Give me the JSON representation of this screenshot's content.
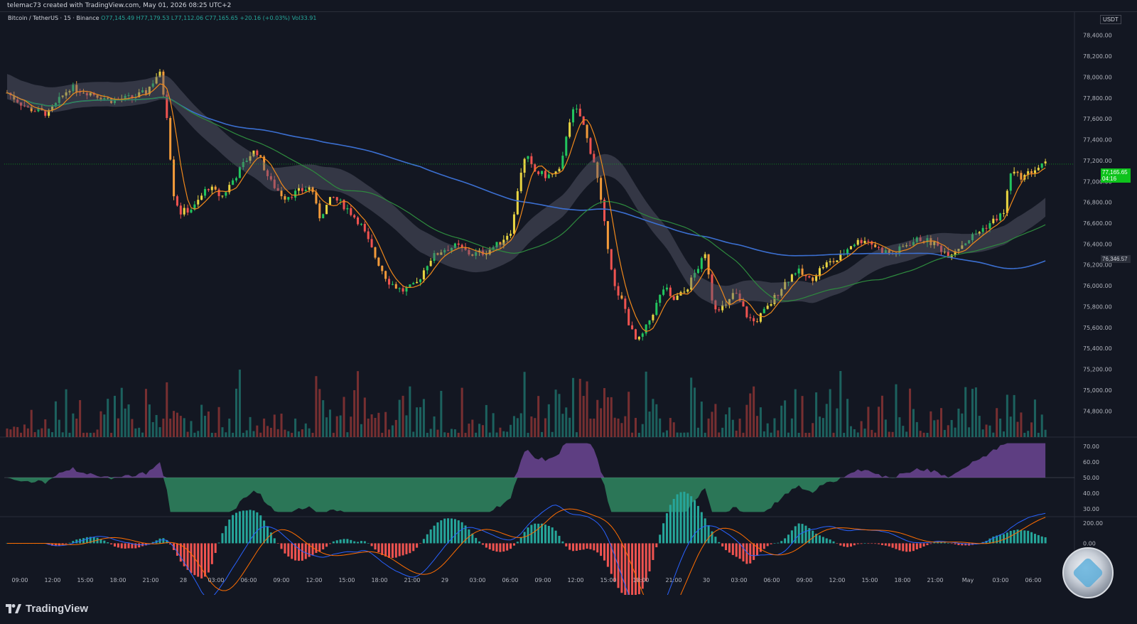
{
  "header": {
    "credit": "telemac73 created with TradingView.com, May 01, 2026 08:25 UTC+2"
  },
  "legend": {
    "symbol": "Bitcoin / TetherUS · 15 · Binance",
    "open": "O77,145.49",
    "high": "H77,179.53",
    "low": "L77,112.06",
    "close": "C77,165.65",
    "change": "+20.16 (+0.03%)",
    "volume": "Vol33.91"
  },
  "currency_badge": "USDT",
  "last_price": {
    "price": "77,165.65",
    "countdown": "04:16"
  },
  "ref_price": "76,346.57",
  "footer": {
    "brand": "TradingView"
  },
  "colors": {
    "background": "#131722",
    "up": "#22c55e",
    "down": "#ef5350",
    "ema_fast": "#f0881b",
    "ma_slow": "#3b6fd1",
    "ma_mid": "#2e8b3e",
    "cloud": "#5d6070",
    "cloud_bull": "#1e5d73",
    "rsi_up": "#9c5fd1",
    "rsi_down": "#3fc583"
  },
  "chart_data": [
    {
      "type": "candlestick",
      "title": "",
      "y_axis": {
        "labels": [
          "78,400.00",
          "78,200.00",
          "78,000.00",
          "77,800.00",
          "77,600.00",
          "77,400.00",
          "77,200.00",
          "77,000.00",
          "76,800.00",
          "76,600.00",
          "76,400.00",
          "76,200.00",
          "76,000.00",
          "75,800.00",
          "75,600.00",
          "75,400.00",
          "75,200.00",
          "75,000.00",
          "74,800.00"
        ],
        "ylim": [
          74700,
          78500
        ]
      },
      "x_axis": {
        "labels": [
          "09:00",
          "12:00",
          "15:00",
          "18:00",
          "21:00",
          "28",
          "03:00",
          "06:00",
          "09:00",
          "12:00",
          "15:00",
          "18:00",
          "21:00",
          "29",
          "03:00",
          "06:00",
          "09:00",
          "12:00",
          "15:00",
          "18:00",
          "21:00",
          "30",
          "03:00",
          "06:00",
          "09:00",
          "12:00",
          "15:00",
          "18:00",
          "21:00",
          "May",
          "03:00",
          "06:00"
        ]
      },
      "price_path": [
        [
          0,
          77850
        ],
        [
          3,
          77700
        ],
        [
          6,
          77650
        ],
        [
          9,
          77900
        ],
        [
          12,
          77850
        ],
        [
          15,
          77780
        ],
        [
          18,
          77800
        ],
        [
          20,
          77850
        ],
        [
          22,
          78050
        ],
        [
          23,
          77700
        ],
        [
          24,
          76900
        ],
        [
          25,
          76700
        ],
        [
          27,
          76750
        ],
        [
          29,
          76950
        ],
        [
          31,
          76850
        ],
        [
          33,
          77050
        ],
        [
          35,
          77250
        ],
        [
          36,
          77300
        ],
        [
          37,
          77150
        ],
        [
          38,
          77000
        ],
        [
          40,
          76850
        ],
        [
          42,
          76900
        ],
        [
          44,
          76950
        ],
        [
          45,
          76650
        ],
        [
          47,
          76850
        ],
        [
          49,
          76750
        ],
        [
          51,
          76600
        ],
        [
          53,
          76300
        ],
        [
          55,
          76050
        ],
        [
          57,
          75950
        ],
        [
          59,
          76000
        ],
        [
          61,
          76250
        ],
        [
          63,
          76350
        ],
        [
          65,
          76380
        ],
        [
          67,
          76300
        ],
        [
          69,
          76320
        ],
        [
          71,
          76400
        ],
        [
          73,
          76550
        ],
        [
          74,
          77050
        ],
        [
          75,
          77250
        ],
        [
          76,
          77100
        ],
        [
          78,
          77050
        ],
        [
          80,
          77100
        ],
        [
          81,
          77550
        ],
        [
          82,
          77700
        ],
        [
          83,
          77600
        ],
        [
          84,
          77350
        ],
        [
          85,
          77150
        ],
        [
          86,
          76700
        ],
        [
          87,
          76300
        ],
        [
          88,
          75900
        ],
        [
          89,
          75850
        ],
        [
          90,
          75600
        ],
        [
          91,
          75450
        ],
        [
          92,
          75550
        ],
        [
          93,
          75700
        ],
        [
          94,
          75850
        ],
        [
          95,
          76000
        ],
        [
          96,
          75850
        ],
        [
          98,
          75950
        ],
        [
          100,
          76200
        ],
        [
          101,
          76300
        ],
        [
          102,
          75800
        ],
        [
          104,
          75800
        ],
        [
          105,
          75950
        ],
        [
          107,
          75700
        ],
        [
          108,
          75650
        ],
        [
          110,
          75800
        ],
        [
          112,
          76000
        ],
        [
          114,
          76150
        ],
        [
          116,
          76050
        ],
        [
          118,
          76200
        ],
        [
          120,
          76250
        ],
        [
          122,
          76400
        ],
        [
          124,
          76450
        ],
        [
          126,
          76350
        ],
        [
          128,
          76300
        ],
        [
          130,
          76400
        ],
        [
          132,
          76450
        ],
        [
          134,
          76400
        ],
        [
          136,
          76300
        ],
        [
          138,
          76400
        ],
        [
          140,
          76500
        ],
        [
          142,
          76600
        ],
        [
          144,
          76700
        ],
        [
          145,
          77100
        ],
        [
          146,
          77050
        ],
        [
          147,
          77050
        ],
        [
          148,
          77100
        ],
        [
          150,
          77165
        ]
      ],
      "volume_note": "volume histogram bars beneath price"
    },
    {
      "type": "area",
      "title": "",
      "y_axis": {
        "labels": [
          "70.00",
          "60.00",
          "50.00",
          "40.00",
          "30.00"
        ],
        "ylim": [
          25,
          75
        ],
        "midline": 50
      }
    },
    {
      "type": "bar",
      "title": "",
      "y_axis": {
        "labels": [
          "200.00",
          "0.00"
        ],
        "ylim": [
          -300,
          250
        ]
      }
    }
  ]
}
